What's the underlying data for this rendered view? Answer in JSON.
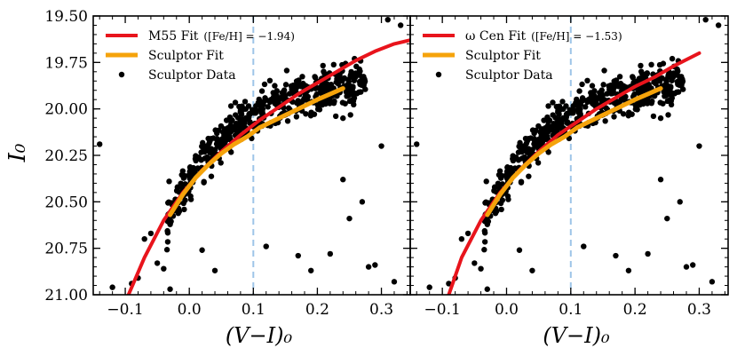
{
  "chart_data": [
    {
      "type": "scatter",
      "panel": "left",
      "xlabel": "(V−I)₀",
      "ylabel": "I₀",
      "xlim": [
        -0.15,
        0.345
      ],
      "ylim": [
        21.0,
        19.5
      ],
      "y_inverted": true,
      "xticks": [
        -0.1,
        0.0,
        0.1,
        0.2,
        0.3
      ],
      "xtick_labels": [
        "−0.1",
        "0.0",
        "0.1",
        "0.2",
        "0.3"
      ],
      "yticks": [
        19.5,
        19.75,
        20.0,
        20.25,
        20.5,
        20.75,
        21.0
      ],
      "ytick_labels": [
        "19.50",
        "19.75",
        "20.00",
        "20.25",
        "20.50",
        "20.75",
        "21.00"
      ],
      "reference_line": {
        "x": 0.1,
        "style": "dashed",
        "color": "#9ec5e8"
      },
      "legend": {
        "placement": "top-left",
        "entries": [
          {
            "label": "M55 Fit",
            "detail": "([Fe/H] = −1.94)",
            "color": "#e8141c",
            "kind": "line"
          },
          {
            "label": "Sculptor Fit",
            "detail": "",
            "color": "#f5a30b",
            "kind": "line"
          },
          {
            "label": "Sculptor Data",
            "detail": "",
            "color": "#000000",
            "kind": "point"
          }
        ]
      },
      "series": [
        {
          "name": "M55 Fit",
          "kind": "line",
          "color": "#e8141c",
          "x": [
            -0.095,
            -0.07,
            -0.04,
            -0.01,
            0.02,
            0.05,
            0.08,
            0.11,
            0.14,
            0.17,
            0.2,
            0.23,
            0.26,
            0.29,
            0.32,
            0.345
          ],
          "y": [
            21.0,
            20.8,
            20.6,
            20.45,
            20.33,
            20.23,
            20.14,
            20.06,
            19.99,
            19.92,
            19.86,
            19.8,
            19.74,
            19.69,
            19.65,
            19.63
          ]
        },
        {
          "name": "Sculptor Fit",
          "kind": "line",
          "color": "#f5a30b",
          "x": [
            -0.03,
            -0.01,
            0.01,
            0.03,
            0.05,
            0.07,
            0.09,
            0.11,
            0.14,
            0.17,
            0.2,
            0.22,
            0.24
          ],
          "y": [
            20.57,
            20.46,
            20.37,
            20.3,
            20.24,
            20.19,
            20.15,
            20.1,
            20.05,
            20.0,
            19.95,
            19.92,
            19.89
          ]
        },
        {
          "name": "Sculptor Data (outliers)",
          "kind": "scatter",
          "color": "#000000",
          "x": [
            -0.14,
            -0.12,
            -0.06,
            -0.05,
            -0.08,
            -0.03,
            0.02,
            0.04,
            -0.07,
            0.17,
            0.24,
            0.25,
            0.28,
            0.29,
            0.32,
            0.31,
            0.33,
            0.24,
            0.3,
            0.27,
            -0.09,
            0.19,
            0.12,
            0.22,
            -0.04
          ],
          "y": [
            20.19,
            20.96,
            20.67,
            20.83,
            20.91,
            20.97,
            20.76,
            20.87,
            20.7,
            20.79,
            20.38,
            20.59,
            20.85,
            20.84,
            20.93,
            19.52,
            19.55,
            20.05,
            20.2,
            20.5,
            20.94,
            20.87,
            20.74,
            20.78,
            20.86
          ]
        }
      ]
    },
    {
      "type": "scatter",
      "panel": "right",
      "xlabel": "(V−I)₀",
      "xlim": [
        -0.15,
        0.345
      ],
      "ylim": [
        21.0,
        19.5
      ],
      "y_inverted": true,
      "xticks": [
        -0.1,
        0.0,
        0.1,
        0.2,
        0.3
      ],
      "xtick_labels": [
        "−0.1",
        "0.0",
        "0.1",
        "0.2",
        "0.3"
      ],
      "reference_line": {
        "x": 0.1,
        "style": "dashed",
        "color": "#9ec5e8"
      },
      "legend": {
        "placement": "top-left",
        "entries": [
          {
            "label": "ω Cen Fit",
            "detail": "([Fe/H] = −1.53)",
            "color": "#e8141c",
            "kind": "line"
          },
          {
            "label": "Sculptor Fit",
            "detail": "",
            "color": "#f5a30b",
            "kind": "line"
          },
          {
            "label": "Sculptor Data",
            "detail": "",
            "color": "#000000",
            "kind": "point"
          }
        ]
      },
      "series": [
        {
          "name": "ω Cen Fit",
          "kind": "line",
          "color": "#e8141c",
          "x": [
            -0.09,
            -0.07,
            -0.04,
            -0.01,
            0.02,
            0.05,
            0.08,
            0.11,
            0.14,
            0.17,
            0.2,
            0.23,
            0.26,
            0.3
          ],
          "y": [
            21.0,
            20.8,
            20.6,
            20.45,
            20.33,
            20.23,
            20.14,
            20.07,
            20.0,
            19.94,
            19.88,
            19.83,
            19.77,
            19.7
          ]
        },
        {
          "name": "Sculptor Fit",
          "kind": "line",
          "color": "#f5a30b",
          "x": [
            -0.03,
            -0.01,
            0.01,
            0.03,
            0.05,
            0.07,
            0.09,
            0.11,
            0.14,
            0.17,
            0.2,
            0.22,
            0.24
          ],
          "y": [
            20.57,
            20.46,
            20.37,
            20.3,
            20.24,
            20.19,
            20.15,
            20.1,
            20.05,
            20.0,
            19.95,
            19.92,
            19.89
          ]
        },
        {
          "name": "Sculptor Data (outliers)",
          "kind": "scatter",
          "color": "#000000",
          "x": [
            -0.14,
            -0.12,
            -0.06,
            -0.05,
            -0.08,
            -0.03,
            0.02,
            0.04,
            -0.07,
            0.17,
            0.24,
            0.25,
            0.28,
            0.29,
            0.32,
            0.31,
            0.33,
            0.24,
            0.3,
            0.27,
            -0.09,
            0.19,
            0.12,
            0.22,
            -0.04
          ],
          "y": [
            20.19,
            20.96,
            20.67,
            20.83,
            20.91,
            20.97,
            20.76,
            20.87,
            20.7,
            20.79,
            20.38,
            20.59,
            20.85,
            20.84,
            20.93,
            19.52,
            19.55,
            20.05,
            20.2,
            20.5,
            20.94,
            20.87,
            20.74,
            20.78,
            20.86
          ]
        }
      ]
    }
  ]
}
